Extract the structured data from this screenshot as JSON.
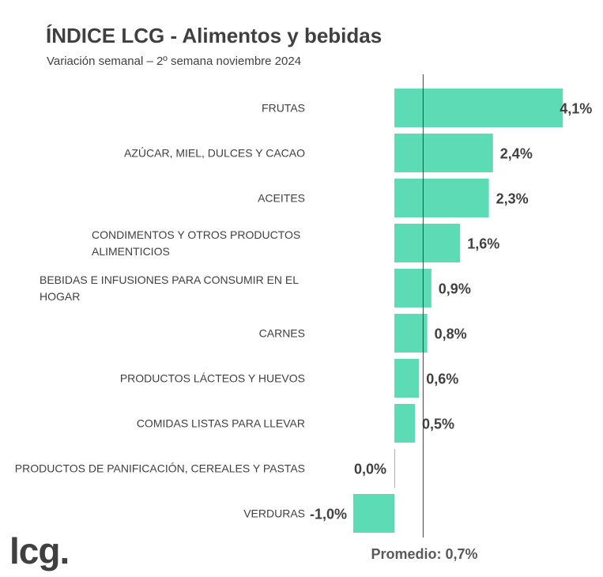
{
  "chart_data": {
    "type": "bar",
    "orientation": "horizontal",
    "title": "ÍNDICE LCG - Alimentos y bebidas",
    "subtitle": "Variación semanal – 2º semana noviembre 2024",
    "categories": [
      "FRUTAS",
      "AZÚCAR, MIEL, DULCES Y CACAO",
      "ACEITES",
      "CONDIMENTOS Y OTROS PRODUCTOS ALIMENTICIOS",
      "BEBIDAS E INFUSIONES PARA CONSUMIR EN EL HOGAR",
      "CARNES",
      "PRODUCTOS LÁCTEOS Y HUEVOS",
      "COMIDAS LISTAS PARA LLEVAR",
      "PRODUCTOS DE PANIFICACIÓN, CEREALES Y PASTAS",
      "VERDURAS"
    ],
    "category_lines": [
      [
        "FRUTAS"
      ],
      [
        "AZÚCAR, MIEL, DULCES Y CACAO"
      ],
      [
        "ACEITES"
      ],
      [
        "CONDIMENTOS Y OTROS PRODUCTOS",
        "ALIMENTICIOS"
      ],
      [
        "BEBIDAS E INFUSIONES PARA CONSUMIR EN EL",
        "HOGAR"
      ],
      [
        "CARNES"
      ],
      [
        "PRODUCTOS LÁCTEOS Y HUEVOS"
      ],
      [
        "COMIDAS LISTAS PARA LLEVAR"
      ],
      [
        "PRODUCTOS DE PANIFICACIÓN, CEREALES Y PASTAS"
      ],
      [
        "VERDURAS"
      ]
    ],
    "values": [
      4.1,
      2.4,
      2.3,
      1.6,
      0.9,
      0.8,
      0.6,
      0.5,
      0.0,
      -1.0
    ],
    "value_labels": [
      "4,1%",
      "2,4%",
      "2,3%",
      "1,6%",
      "0,9%",
      "0,8%",
      "0,6%",
      "0,5%",
      "0,0%",
      "-1,0%"
    ],
    "average": 0.7,
    "average_label": "Promedio: 0,7%",
    "bar_color": "#5ddbb4",
    "xlim": [
      -1.0,
      4.1
    ],
    "grid": false,
    "legend": "none"
  },
  "logo": "lcg."
}
